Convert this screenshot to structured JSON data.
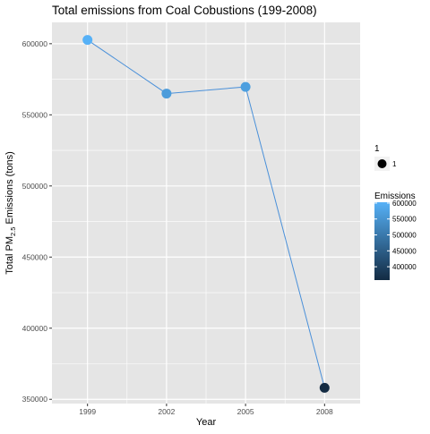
{
  "chart_data": {
    "type": "line",
    "title": "Total emissions from Coal Cobustions (199-2008)",
    "xlabel": "Year",
    "ylabel_prefix": "Total PM",
    "ylabel_sub": "2.5",
    "ylabel_suffix": " Emissions (tons)",
    "x": [
      1999,
      2002,
      2005,
      2008
    ],
    "x_tick_labels": [
      "1999",
      "2002",
      "2005",
      "2008"
    ],
    "values": [
      602624,
      564940,
      569655,
      358084
    ],
    "ylim": [
      347000,
      615000
    ],
    "y_ticks": [
      350000,
      400000,
      450000,
      500000,
      550000,
      600000
    ],
    "y_tick_labels": [
      "350000",
      "400000",
      "450000",
      "500000",
      "550000",
      "600000"
    ],
    "grid": true,
    "line_color": "#4a90d9",
    "panel_bg": "#e5e5e5",
    "grid_color": "#ffffff",
    "size_legend": {
      "title": "1",
      "label": "1"
    },
    "color_legend": {
      "title": "Emissions",
      "range": [
        358084,
        602624
      ],
      "low_color": "#132b43",
      "high_color": "#56b1f7",
      "breaks": [
        400000,
        450000,
        500000,
        550000,
        600000
      ],
      "break_labels": [
        "400000",
        "450000",
        "500000",
        "550000",
        "600000"
      ]
    },
    "legend_position": "right"
  }
}
